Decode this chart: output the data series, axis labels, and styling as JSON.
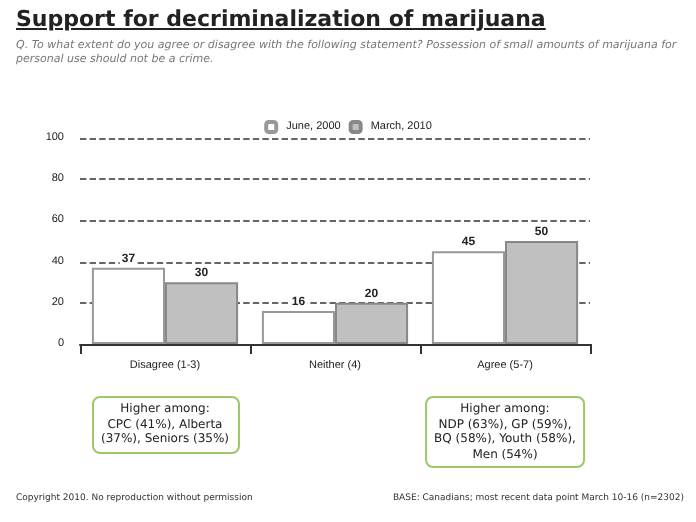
{
  "chart_data": {
    "type": "bar",
    "title": "Support for decriminalization of marijuana",
    "subtitle": "Q.  To what extent do you agree or disagree with the following statement? Possession of small amounts of marijuana for personal use should not be a crime.",
    "categories": [
      "Disagree (1-3)",
      "Neither (4)",
      "Agree (5-7)"
    ],
    "series": [
      {
        "name": "June, 2000",
        "color": "#ffffff",
        "values": [
          37,
          16,
          45
        ]
      },
      {
        "name": "March, 2010",
        "color": "#c0c0c0",
        "values": [
          30,
          20,
          50
        ]
      }
    ],
    "ylim": [
      0,
      100
    ],
    "yticks": [
      0,
      20,
      40,
      60,
      80,
      100
    ],
    "grid": "y",
    "legend": "top",
    "data_labels": true,
    "annotations": [
      "Higher among:\nCPC (41%), Alberta\n(37%), Seniors (35%)",
      "Higher among:\nNDP (63%), GP (59%),\nBQ (58%), Youth (58%),\nMen (54%)",
      "Copyright 2010. No reproduction without permission",
      "BASE: Canadians; most recent data point March 10-16 (n=2302)"
    ]
  }
}
